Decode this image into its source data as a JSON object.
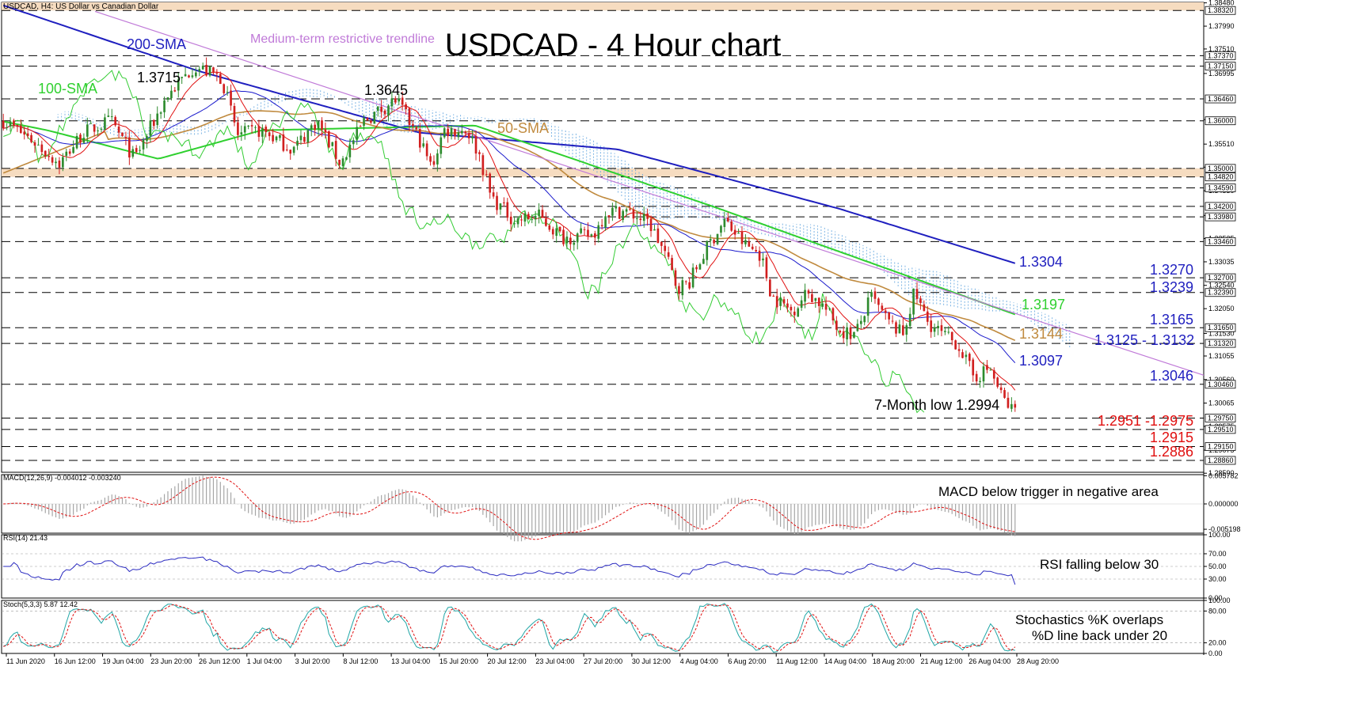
{
  "window": {
    "title": "USDCAD, H4:  US Dollar vs Canadian Dollar",
    "chart_title": "USDCAD - 4 Hour chart"
  },
  "colors": {
    "bull": "#2e8b2e",
    "bear": "#d11f1f",
    "sma200": "#1f1fbf",
    "sma100": "#2fd02f",
    "sma50": "#c08a3e",
    "tenkan": "#e01010",
    "kijun": "#1a1acc",
    "chikou": "#33cc33",
    "cloud": "#66a8e0",
    "trendline": "#c07ad8",
    "zone": "#f6dcc0",
    "macd_hist": "#a6a6a6",
    "macd_signal": "#e01010",
    "rsi": "#2a2ac0",
    "stoch_k": "#20a6a6",
    "stoch_d": "#e01010",
    "support_red": "#e01010",
    "level_blue": "#1f1fbf"
  },
  "chart_data": [
    {
      "type": "candlestick",
      "title": "USDCAD - 4 Hour chart",
      "ylim": [
        1.2861,
        1.3849
      ],
      "x_ticks": [
        "11 Jun 2020",
        "16 Jun 12:00",
        "19 Jun 04:00",
        "23 Jun 20:00",
        "26 Jun 12:00",
        "1 Jul 04:00",
        "3 Jul 20:00",
        "8 Jul 12:00",
        "13 Jul 04:00",
        "15 Jul 20:00",
        "20 Jul 12:00",
        "23 Jul 04:00",
        "27 Jul 20:00",
        "30 Jul 12:00",
        "4 Aug 04:00",
        "6 Aug 20:00",
        "11 Aug 12:00",
        "14 Aug 04:00",
        "18 Aug 20:00",
        "21 Aug 12:00",
        "26 Aug 04:00",
        "28 Aug 20:00"
      ],
      "y_ticks": [
        "1.38480",
        "1.37990",
        "1.37510",
        "1.36995",
        "1.36025",
        "1.35510",
        "1.35025",
        "1.34530",
        "1.34010",
        "1.33525",
        "1.33035",
        "1.32540",
        "1.32050",
        "1.31530",
        "1.31055",
        "1.30560",
        "1.30065",
        "1.29575",
        "1.29075",
        "1.28590"
      ],
      "price_levels": [
        "1.38320",
        "1.37370",
        "1.37150",
        "1.36460",
        "1.36000",
        "1.35000",
        "1.34820",
        "1.34590",
        "1.34200",
        "1.33980",
        "1.33460",
        "1.32700",
        "1.32390",
        "1.31650",
        "1.31320",
        "1.30460",
        "1.29750",
        "1.29510",
        "1.29150",
        "1.28860"
      ],
      "annotations": {
        "sma200": "200-SMA",
        "sma100": "100-SMA",
        "sma50": "50-SMA",
        "trendline": "Medium-term restrictive trendline",
        "peak1": "1.3715",
        "peak2": "1.3645",
        "low": "7-Month low 1.2994",
        "sma200_val": "1.3304",
        "sma100_val": "1.3197",
        "sma50_val": "1.3144",
        "kijun_val": "1.3097",
        "res1": "1.3270",
        "res2": "1.3239",
        "res3": "1.3165",
        "res4": "1.3125 - 1.3132",
        "res5": "1.3046",
        "sup1": "1.2951 -1.2975",
        "sup2": "1.2915",
        "sup3": "1.2886"
      }
    },
    {
      "type": "bar",
      "title": "MACD(12,26,9) -0.004012 -0.003240",
      "ylim": [
        -0.006,
        0.006
      ],
      "y_ticks": [
        "0.005782",
        "0.000000",
        "-0.005198"
      ],
      "note": "MACD below trigger in negative area"
    },
    {
      "type": "line",
      "title": "RSI(14) 21.43",
      "ylim": [
        0,
        100
      ],
      "y_ticks": [
        "100.00",
        "70.00",
        "50.00",
        "30.00",
        "0.00"
      ],
      "last_value": 21.43,
      "note": "RSI falling below 30"
    },
    {
      "type": "line",
      "title": "Stoch(5,3,3) 5.87 12.42",
      "ylim": [
        0,
        100
      ],
      "y_ticks": [
        "100.00",
        "80.00",
        "20.00",
        "0.00"
      ],
      "last_k": 5.87,
      "last_d": 12.42,
      "note_line1": "Stochastics %K overlaps",
      "note_line2": "%D line back under 20"
    }
  ]
}
